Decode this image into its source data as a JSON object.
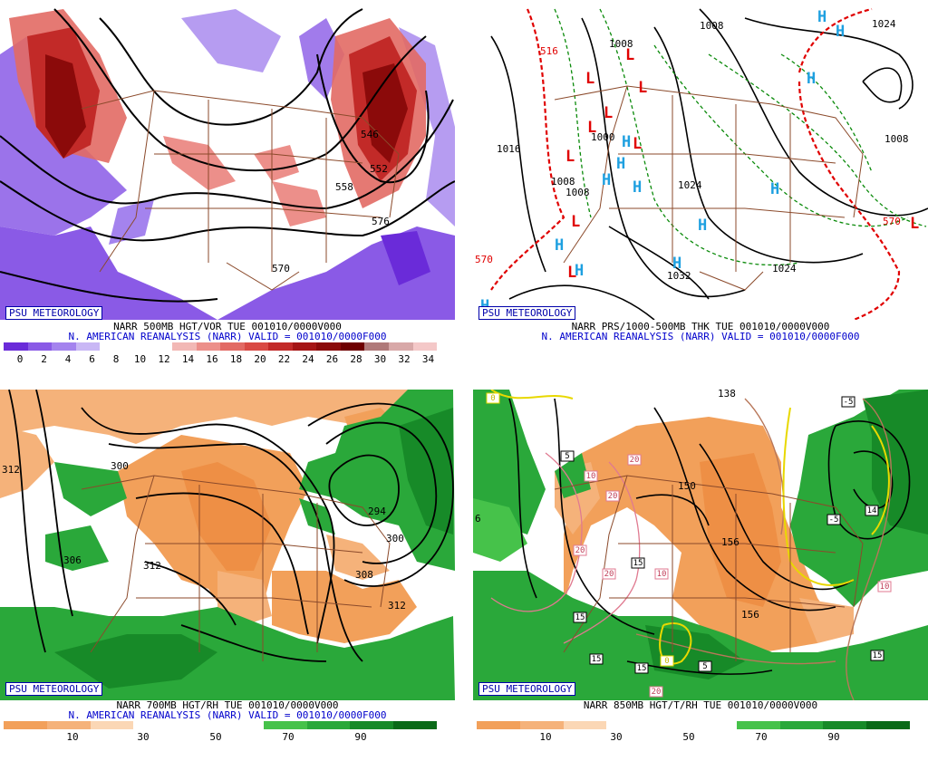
{
  "panels": [
    {
      "badge": "PSU METEOROLOGY",
      "title": "NARR 500MB HGT/VOR TUE 001010/0000V000",
      "subtitle": "N. AMERICAN REANALYSIS (NARR) VALID = 001010/0000F000",
      "colorbar": {
        "ticks": [
          "0",
          "2",
          "4",
          "6",
          "8",
          "10",
          "12",
          "14",
          "16",
          "18",
          "20",
          "22",
          "24",
          "26",
          "28",
          "30",
          "32",
          "34"
        ],
        "colors": [
          "#6a2bd9",
          "#8a5ae6",
          "#a483ee",
          "#c9b7f5",
          "#ffffff",
          "#ffffff",
          "#ffffff",
          "#f2b8b5",
          "#ec8f8a",
          "#e26a64",
          "#d94a44",
          "#c22a28",
          "#a51515",
          "#8b0a0a",
          "#6e0000",
          "#b07a7a",
          "#d8a8a8",
          "#f4c8c8"
        ]
      },
      "labels": [
        "546",
        "552",
        "558",
        "576",
        "570"
      ]
    },
    {
      "badge": "PSU METEOROLOGY",
      "title": "NARR PRS/1000-500MB THK TUE 001010/0000V000",
      "subtitle": "N. AMERICAN REANALYSIS (NARR) VALID = 001010/0000F000",
      "labels": [
        "1008",
        "1008",
        "1024",
        "1016",
        "1000",
        "1008",
        "1008",
        "1024",
        "1032",
        "1024",
        "1008",
        "570",
        "516",
        "570",
        "1016"
      ],
      "lows": [
        "L",
        "L",
        "L",
        "L",
        "L",
        "L",
        "L",
        "L",
        "L",
        "L"
      ],
      "highs": [
        "H",
        "H",
        "H",
        "H",
        "H",
        "H",
        "H",
        "H",
        "H",
        "H",
        "H",
        "H",
        "H"
      ]
    },
    {
      "badge": "PSU METEOROLOGY",
      "title": "NARR 700MB HGT/RH TUE 001010/0000V000",
      "subtitle": "N. AMERICAN REANALYSIS (NARR) VALID = 001010/0000F000",
      "colorbar": {
        "ticks": [
          "10",
          "30",
          "50",
          "70",
          "90"
        ],
        "colors": [
          "#f2a05a",
          "#f5b27a",
          "#fbd7b5",
          "#ffffff",
          "#ffffff",
          "#ffffff",
          "#46c24a",
          "#2aa83a",
          "#178a28",
          "#0a6a18"
        ]
      },
      "labels": [
        "312",
        "300",
        "306",
        "312",
        "294",
        "300",
        "308",
        "312"
      ]
    },
    {
      "badge": "PSU METEOROLOGY",
      "title": "NARR 850MB HGT/T/RH TUE 001010/0000V000",
      "subtitle": "",
      "colorbar": {
        "ticks": [
          "10",
          "30",
          "50",
          "70",
          "90"
        ],
        "colors": [
          "#f2a05a",
          "#f5b27a",
          "#fbd7b5",
          "#ffffff",
          "#ffffff",
          "#ffffff",
          "#46c24a",
          "#2aa83a",
          "#178a28",
          "#0a6a18"
        ]
      },
      "labels": [
        "138",
        "150",
        "156",
        "156",
        "6"
      ],
      "boxes": [
        "0",
        "5",
        "10",
        "20",
        "20",
        "20",
        "20",
        "15",
        "10",
        "15",
        "15",
        "15",
        "0",
        "5",
        "20",
        "-5",
        "-5",
        "14",
        "10",
        "15"
      ]
    }
  ]
}
